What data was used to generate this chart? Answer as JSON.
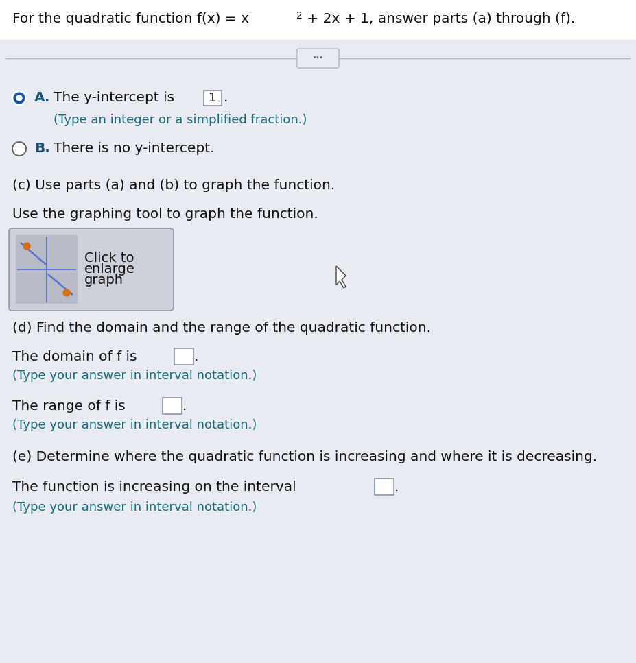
{
  "bg_color": "#dce0e8",
  "content_bg": "#e8ecf2",
  "title": "For the quadratic function f(x) = x² + 2x + 1, answer parts (a) through (f).",
  "sep_color": "#b0b4bc",
  "dots_text": "···",
  "option_a_text1": "A.  The y-intercept is ",
  "option_a_box": "1",
  "option_a_hint": "(Type an integer or a simplified fraction.)",
  "option_b_text": "B.  There is no y-intercept.",
  "part_c1": "(c) Use parts (a) and (b) to graph the function.",
  "part_c2": "Use the graphing tool to graph the function.",
  "graph_line1": "Click to",
  "graph_line2": "enlarge",
  "graph_line3": "graph",
  "part_d": "(d) Find the domain and the range of the quadratic function.",
  "domain_text": "The domain of f is",
  "domain_hint": "(Type your answer in interval notation.)",
  "range_text": "The range of f is",
  "range_hint": "(Type your answer in interval notation.)",
  "part_e": "(e) Determine where the quadratic function is increasing and where it is decreasing.",
  "inc_text": "The function is increasing on the interval",
  "inc_hint": "(Type your answer in interval notation.)",
  "black": "#111111",
  "blue_text": "#1a5276",
  "teal": "#1a6b7a",
  "radio_blue": "#1a55a0",
  "line_blue": "#5b70c8",
  "dot_orange": "#d4701a",
  "mini_bg": "#b8bcc8",
  "btn_bg": "#cdd0d8",
  "btn_border": "#9098a8"
}
